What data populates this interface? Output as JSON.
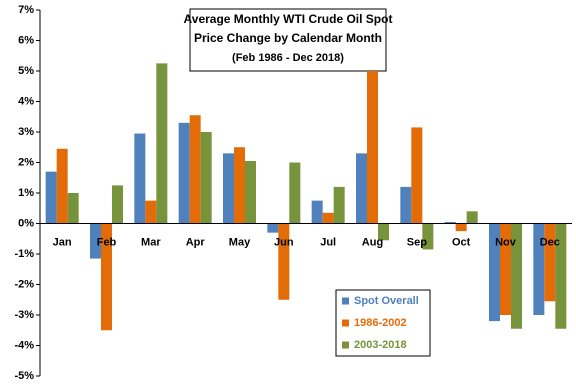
{
  "chart_data": {
    "type": "bar",
    "title": [
      "Average Monthly WTI Crude Oil Spot",
      "Price Change by Calendar Month"
    ],
    "subtitle": "(Feb 1986 - Dec 2018)",
    "categories": [
      "Jan",
      "Feb",
      "Mar",
      "Apr",
      "May",
      "Jun",
      "Jul",
      "Aug",
      "Sep",
      "Oct",
      "Nov",
      "Dec"
    ],
    "series": [
      {
        "name": "Spot Overall",
        "color": "#4f81bd",
        "values": [
          1.7,
          -1.15,
          2.95,
          3.3,
          2.3,
          -0.3,
          0.75,
          2.3,
          1.2,
          0.05,
          -3.2,
          -3.0
        ]
      },
      {
        "name": "1986-2002",
        "color": "#e36c09",
        "values": [
          2.45,
          -3.5,
          0.75,
          3.55,
          2.5,
          -2.5,
          0.35,
          5.0,
          3.15,
          -0.25,
          -3.0,
          -2.55
        ]
      },
      {
        "name": "2003-2018",
        "color": "#77933c",
        "values": [
          1.0,
          1.25,
          5.25,
          3.0,
          2.05,
          2.0,
          1.2,
          -0.55,
          -0.85,
          0.4,
          -3.45,
          -3.45
        ]
      }
    ],
    "ylim": [
      -5,
      7
    ],
    "yticks": [
      {
        "value": -5,
        "label": "-5%"
      },
      {
        "value": -4,
        "label": "-4%"
      },
      {
        "value": -3,
        "label": "-3%"
      },
      {
        "value": -2,
        "label": "-2%"
      },
      {
        "value": -1,
        "label": "-1%"
      },
      {
        "value": 0,
        "label": "0%"
      },
      {
        "value": 1,
        "label": "1%"
      },
      {
        "value": 2,
        "label": "2%"
      },
      {
        "value": 3,
        "label": "3%"
      },
      {
        "value": 4,
        "label": "4%"
      },
      {
        "value": 5,
        "label": "5%"
      },
      {
        "value": 6,
        "label": "6%"
      },
      {
        "value": 7,
        "label": "7%"
      }
    ],
    "grid": false
  }
}
